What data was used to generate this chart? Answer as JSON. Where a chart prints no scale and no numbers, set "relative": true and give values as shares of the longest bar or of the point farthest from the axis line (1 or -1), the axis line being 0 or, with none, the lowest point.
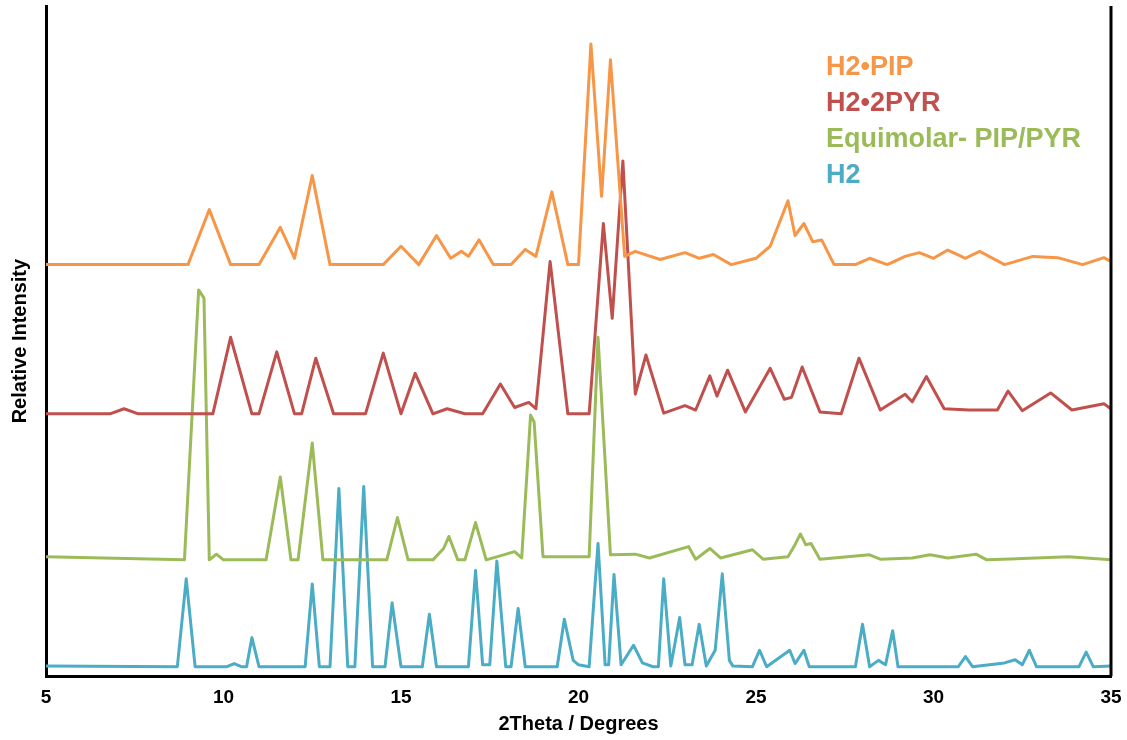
{
  "chart_data": {
    "type": "line",
    "relative": true,
    "xlabel": "2Theta / Degrees",
    "ylabel": "Relative Intensity",
    "xlim": [
      5,
      35
    ],
    "xticks": [
      5,
      10,
      15,
      20,
      25,
      30,
      35
    ],
    "grid": false,
    "legend": "top right",
    "marker": "none",
    "line_style": "solid",
    "series": [
      {
        "name": "H2•PIP",
        "color": "#f79646",
        "x": [
          5,
          9.0,
          9.6,
          10.2,
          11.0,
          11.6,
          12.0,
          12.5,
          13.0,
          14.5,
          15.0,
          15.5,
          16.0,
          16.4,
          16.7,
          16.9,
          17.2,
          17.6,
          18.1,
          18.5,
          18.8,
          19.25,
          19.7,
          20.0,
          20.35,
          20.65,
          20.9,
          21.3,
          21.6,
          22.3,
          23.0,
          23.4,
          23.8,
          24.3,
          25.0,
          25.4,
          25.9,
          26.1,
          26.35,
          26.6,
          26.85,
          27.2,
          27.8,
          28.2,
          28.7,
          29.2,
          29.6,
          30.0,
          30.4,
          30.9,
          31.3,
          32.0,
          32.8,
          33.5,
          34.2,
          34.8,
          35
        ],
        "values": [
          0.651,
          0.651,
          0.738,
          0.651,
          0.651,
          0.71,
          0.661,
          0.792,
          0.651,
          0.651,
          0.68,
          0.651,
          0.697,
          0.661,
          0.672,
          0.664,
          0.69,
          0.651,
          0.651,
          0.675,
          0.664,
          0.766,
          0.651,
          0.651,
          1.0,
          0.759,
          0.975,
          0.664,
          0.672,
          0.659,
          0.67,
          0.661,
          0.667,
          0.651,
          0.661,
          0.68,
          0.752,
          0.697,
          0.716,
          0.687,
          0.69,
          0.651,
          0.651,
          0.661,
          0.651,
          0.664,
          0.67,
          0.661,
          0.674,
          0.661,
          0.672,
          0.651,
          0.664,
          0.662,
          0.651,
          0.662,
          0.656
        ]
      },
      {
        "name": "H2•2PYR",
        "color": "#c0504d",
        "x": [
          5,
          6.8,
          7.2,
          7.6,
          9.7,
          10.2,
          10.8,
          11.0,
          11.5,
          12.0,
          12.2,
          12.6,
          13.1,
          14.0,
          14.5,
          15.0,
          15.4,
          15.9,
          16.3,
          16.8,
          17.3,
          17.8,
          18.2,
          18.6,
          18.8,
          19.2,
          19.7,
          20.3,
          20.7,
          20.95,
          21.25,
          21.6,
          21.9,
          22.4,
          23.0,
          23.3,
          23.7,
          23.9,
          24.2,
          24.7,
          25.4,
          25.8,
          26.0,
          26.3,
          26.8,
          27.4,
          27.9,
          28.5,
          29.2,
          29.4,
          29.8,
          30.3,
          31.0,
          31.8,
          32.1,
          32.5,
          33.3,
          33.9,
          34.8,
          35
        ],
        "values": [
          0.415,
          0.415,
          0.423,
          0.415,
          0.415,
          0.536,
          0.415,
          0.415,
          0.513,
          0.415,
          0.415,
          0.503,
          0.415,
          0.415,
          0.511,
          0.415,
          0.479,
          0.415,
          0.423,
          0.415,
          0.415,
          0.462,
          0.425,
          0.433,
          0.423,
          0.656,
          0.415,
          0.415,
          0.716,
          0.566,
          0.815,
          0.446,
          0.508,
          0.416,
          0.428,
          0.421,
          0.475,
          0.443,
          0.484,
          0.418,
          0.487,
          0.438,
          0.441,
          0.489,
          0.418,
          0.415,
          0.503,
          0.421,
          0.446,
          0.434,
          0.474,
          0.423,
          0.421,
          0.421,
          0.451,
          0.42,
          0.448,
          0.421,
          0.431,
          0.423
        ]
      },
      {
        "name": "Equimolar- PIP/PYR",
        "color": "#9bbb59",
        "x": [
          5,
          8.9,
          9.3,
          9.45,
          9.6,
          9.8,
          10.0,
          11.2,
          11.6,
          11.9,
          12.1,
          12.5,
          12.8,
          13.5,
          14.6,
          14.9,
          15.2,
          15.9,
          16.2,
          16.35,
          16.6,
          16.8,
          17.1,
          17.4,
          18.2,
          18.4,
          18.65,
          18.75,
          19.0,
          19.6,
          20.3,
          20.55,
          20.9,
          21.6,
          22.0,
          23.1,
          23.3,
          23.7,
          24.0,
          24.9,
          25.2,
          25.9,
          26.1,
          26.25,
          26.4,
          26.55,
          26.8,
          28.2,
          28.5,
          29.4,
          29.9,
          30.1,
          30.4,
          31.2,
          31.5,
          33.8,
          35
        ],
        "values": [
          0.189,
          0.184,
          0.611,
          0.598,
          0.184,
          0.193,
          0.184,
          0.184,
          0.315,
          0.184,
          0.184,
          0.369,
          0.184,
          0.184,
          0.184,
          0.251,
          0.184,
          0.184,
          0.202,
          0.221,
          0.184,
          0.184,
          0.243,
          0.184,
          0.197,
          0.187,
          0.413,
          0.402,
          0.189,
          0.189,
          0.189,
          0.536,
          0.192,
          0.193,
          0.187,
          0.205,
          0.185,
          0.202,
          0.187,
          0.2,
          0.185,
          0.189,
          0.208,
          0.225,
          0.208,
          0.21,
          0.185,
          0.192,
          0.185,
          0.187,
          0.192,
          0.19,
          0.187,
          0.193,
          0.184,
          0.189,
          0.184
        ]
      },
      {
        "name": "H2",
        "color": "#4bacc6",
        "x": [
          5,
          8.7,
          8.95,
          9.2,
          10.1,
          10.3,
          10.5,
          10.65,
          10.8,
          11.0,
          12.3,
          12.5,
          12.7,
          13.0,
          13.25,
          13.5,
          13.7,
          13.95,
          14.2,
          14.55,
          14.75,
          15.0,
          15.6,
          15.8,
          16.0,
          16.9,
          17.1,
          17.3,
          17.5,
          17.7,
          17.95,
          18.1,
          18.3,
          18.5,
          19.4,
          19.6,
          19.85,
          20.0,
          20.3,
          20.55,
          20.75,
          20.85,
          21.0,
          21.2,
          21.55,
          21.8,
          22.1,
          22.25,
          22.4,
          22.6,
          22.85,
          23.0,
          23.2,
          23.4,
          23.6,
          23.85,
          24.05,
          24.25,
          24.35,
          24.9,
          25.1,
          25.3,
          25.95,
          26.1,
          26.35,
          26.5,
          27.8,
          28.0,
          28.2,
          28.45,
          28.65,
          28.85,
          29.0,
          30.7,
          30.9,
          31.1,
          32.0,
          32.3,
          32.5,
          32.7,
          32.9,
          34.1,
          34.3,
          34.5,
          35
        ],
        "values": [
          0.016,
          0.015,
          0.154,
          0.015,
          0.015,
          0.02,
          0.015,
          0.015,
          0.061,
          0.015,
          0.015,
          0.146,
          0.015,
          0.015,
          0.297,
          0.015,
          0.015,
          0.3,
          0.015,
          0.015,
          0.116,
          0.015,
          0.015,
          0.098,
          0.015,
          0.015,
          0.167,
          0.018,
          0.018,
          0.182,
          0.015,
          0.015,
          0.107,
          0.015,
          0.015,
          0.09,
          0.025,
          0.018,
          0.015,
          0.21,
          0.018,
          0.018,
          0.161,
          0.018,
          0.049,
          0.021,
          0.015,
          0.015,
          0.154,
          0.016,
          0.093,
          0.018,
          0.018,
          0.082,
          0.016,
          0.041,
          0.162,
          0.025,
          0.016,
          0.015,
          0.041,
          0.015,
          0.041,
          0.02,
          0.041,
          0.015,
          0.015,
          0.082,
          0.015,
          0.025,
          0.018,
          0.072,
          0.015,
          0.015,
          0.031,
          0.015,
          0.021,
          0.026,
          0.018,
          0.041,
          0.015,
          0.015,
          0.038,
          0.015,
          0.016
        ]
      }
    ]
  }
}
